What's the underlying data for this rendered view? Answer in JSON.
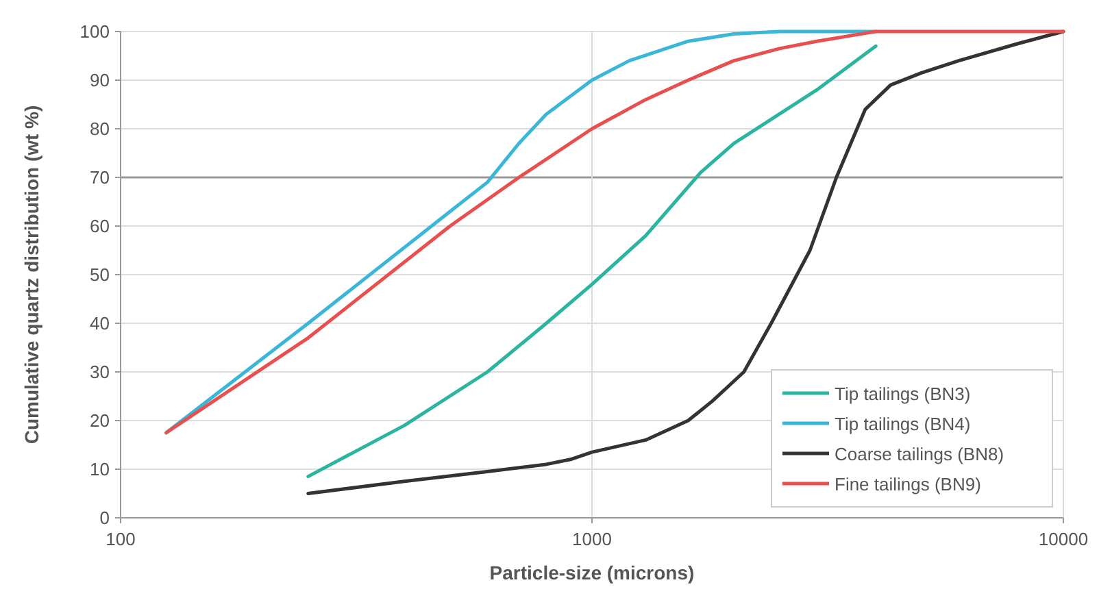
{
  "chart_data": {
    "type": "line",
    "xlabel": "Particle-size (microns)",
    "ylabel": "Cumulative quartz distribution (wt %)",
    "log": "x",
    "xlim": [
      100,
      10000
    ],
    "xticks": [
      100,
      1000,
      10000
    ],
    "ylim": [
      0,
      100
    ],
    "yticks": [
      0,
      10,
      20,
      30,
      40,
      50,
      60,
      70,
      80,
      90,
      100
    ],
    "grid": true,
    "ref_lines": [
      {
        "axis": "y",
        "value": 70,
        "color": "#999999"
      }
    ],
    "legend": "bottom right",
    "marker": "none",
    "line_style": "solid",
    "series": [
      {
        "name": "Tip tailings (BN3)",
        "color": "#2bb5a0",
        "x": [
          250,
          400,
          600,
          800,
          1000,
          1300,
          1700,
          2000,
          3000,
          4000
        ],
        "values": [
          8.5,
          19,
          30,
          40,
          48,
          58,
          71,
          77,
          88,
          97
        ]
      },
      {
        "name": "Tip tailings (BN4)",
        "color": "#3bb6d8",
        "x": [
          125,
          250,
          500,
          600,
          700,
          800,
          1000,
          1200,
          1600,
          2000,
          2500,
          4000
        ],
        "values": [
          17.5,
          40,
          63,
          69,
          77,
          83,
          90,
          94,
          98,
          99.5,
          100,
          100
        ]
      },
      {
        "name": "Coarse tailings (BN8)",
        "color": "#333333",
        "x": [
          250,
          400,
          600,
          800,
          900,
          1000,
          1300,
          1600,
          1800,
          2100,
          2400,
          2900,
          3300,
          3800,
          4300,
          5000,
          6000,
          8000,
          10000
        ],
        "values": [
          5,
          7.5,
          9.5,
          11,
          12,
          13.5,
          16,
          20,
          24,
          30,
          40,
          55,
          70,
          84,
          89,
          91.5,
          94,
          97.5,
          100
        ]
      },
      {
        "name": "Fine tailings (BN9)",
        "color": "#e8504f",
        "x": [
          125,
          250,
          500,
          700,
          1000,
          1300,
          1600,
          2000,
          2500,
          3000,
          4000,
          10000
        ],
        "values": [
          17.5,
          37,
          60,
          70,
          80,
          86,
          90,
          94,
          96.5,
          98,
          100,
          100
        ]
      }
    ]
  }
}
